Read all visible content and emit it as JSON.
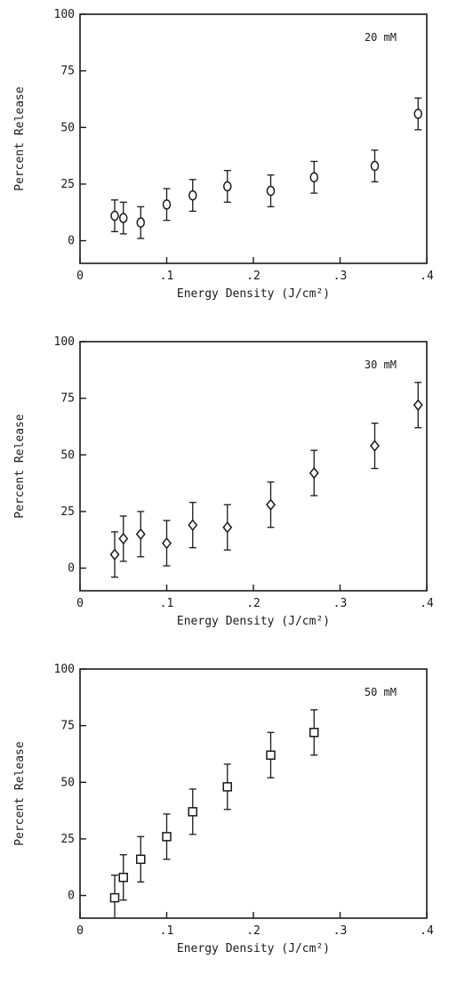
{
  "chart_data": [
    {
      "type": "scatter",
      "marker": "circle",
      "annotation": "20 mM",
      "xlabel": "Energy Density (J/cm²)",
      "ylabel": "Percent Release",
      "xlim": [
        0,
        0.4
      ],
      "ylim": [
        -10,
        100
      ],
      "xticks": [
        "0",
        ".1",
        ".2",
        ".3",
        ".4"
      ],
      "yticks": [
        "0",
        "25",
        "50",
        "75",
        "100"
      ],
      "x": [
        0.04,
        0.05,
        0.07,
        0.1,
        0.13,
        0.17,
        0.22,
        0.27,
        0.34,
        0.39
      ],
      "y": [
        11,
        10,
        8,
        16,
        20,
        24,
        22,
        28,
        33,
        56
      ],
      "yerr": [
        7,
        7,
        7,
        7,
        7,
        7,
        7,
        7,
        7,
        7
      ]
    },
    {
      "type": "scatter",
      "marker": "diamond",
      "annotation": "30 mM",
      "xlabel": "Energy Density (J/cm²)",
      "ylabel": "Percent Release",
      "xlim": [
        0,
        0.4
      ],
      "ylim": [
        -10,
        100
      ],
      "xticks": [
        "0",
        ".1",
        ".2",
        ".3",
        ".4"
      ],
      "yticks": [
        "0",
        "25",
        "50",
        "75",
        "100"
      ],
      "x": [
        0.04,
        0.05,
        0.07,
        0.1,
        0.13,
        0.17,
        0.22,
        0.27,
        0.34,
        0.39
      ],
      "y": [
        6,
        13,
        15,
        11,
        19,
        18,
        28,
        42,
        54,
        72
      ],
      "yerr": [
        10,
        10,
        10,
        10,
        10,
        10,
        10,
        10,
        10,
        10
      ]
    },
    {
      "type": "scatter",
      "marker": "square",
      "annotation": "50 mM",
      "xlabel": "Energy Density (J/cm²)",
      "ylabel": "Percent Release",
      "xlim": [
        0,
        0.4
      ],
      "ylim": [
        -10,
        100
      ],
      "xticks": [
        "0",
        ".1",
        ".2",
        ".3",
        ".4"
      ],
      "yticks": [
        "0",
        "25",
        "50",
        "75",
        "100"
      ],
      "x": [
        0.04,
        0.05,
        0.07,
        0.1,
        0.13,
        0.17,
        0.22,
        0.27
      ],
      "y": [
        -1,
        8,
        16,
        26,
        37,
        48,
        62,
        72
      ],
      "yerr": [
        10,
        10,
        10,
        10,
        10,
        10,
        10,
        10
      ]
    }
  ]
}
